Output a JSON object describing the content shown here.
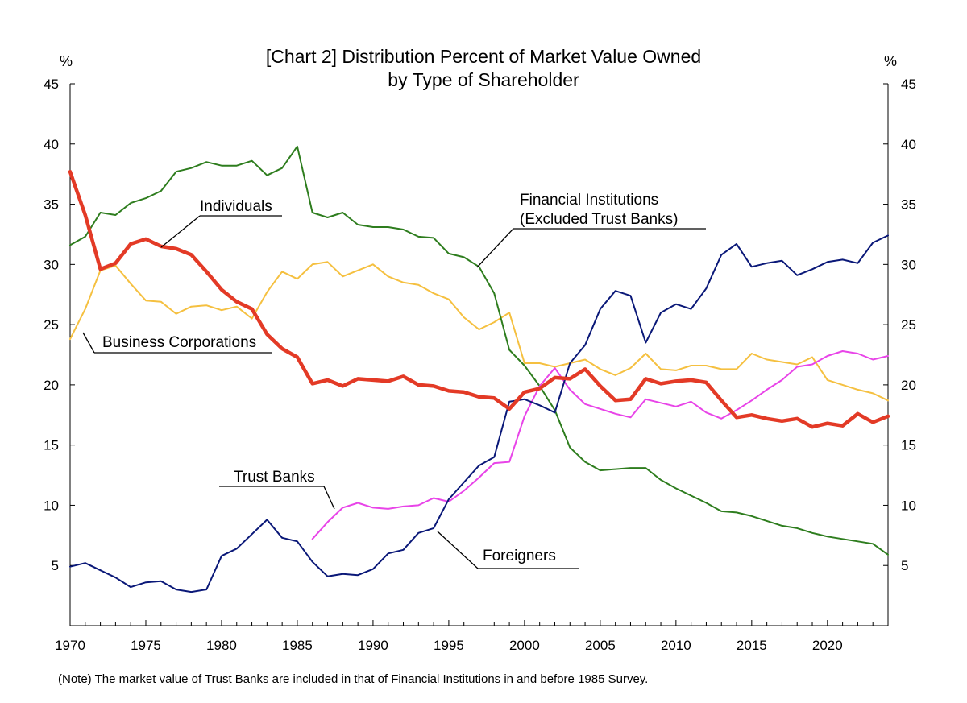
{
  "chart_data": {
    "type": "line",
    "title_line1": "[Chart  2] Distribution Percent of Market Value Owned",
    "title_line2": "by Type of Shareholder",
    "ylabel_left": "%",
    "ylabel_right": "%",
    "ylim": [
      0,
      45
    ],
    "yticks": [
      5,
      10,
      15,
      20,
      25,
      30,
      35,
      40,
      45
    ],
    "xlim": [
      1970,
      2024
    ],
    "xticks": [
      1970,
      1975,
      1980,
      1985,
      1990,
      1995,
      2000,
      2005,
      2010,
      2015,
      2020
    ],
    "note": "(Note)  The market value of Trust Banks are included in that of Financial Institutions in and before 1985 Survey.",
    "series": [
      {
        "key": "financial",
        "name": "Financial Institutions",
        "name_line2": "(Excluded Trust Banks)",
        "color": "#2e7d1e",
        "x": [
          1970,
          1971,
          1972,
          1973,
          1974,
          1975,
          1976,
          1977,
          1978,
          1979,
          1980,
          1981,
          1982,
          1983,
          1984,
          1985,
          1986,
          1987,
          1988,
          1989,
          1990,
          1991,
          1992,
          1993,
          1994,
          1995,
          1996,
          1997,
          1998,
          1999,
          2000,
          2001,
          2002,
          2003,
          2004,
          2005,
          2006,
          2007,
          2008,
          2009,
          2010,
          2011,
          2012,
          2013,
          2014,
          2015,
          2016,
          2017,
          2018,
          2019,
          2020,
          2021,
          2022,
          2023,
          2024
        ],
        "values": [
          31.6,
          32.3,
          34.3,
          34.1,
          35.1,
          35.5,
          36.1,
          37.7,
          38.0,
          38.5,
          38.2,
          38.2,
          38.6,
          37.4,
          38.0,
          39.8,
          34.3,
          33.9,
          34.3,
          33.3,
          33.1,
          33.1,
          32.9,
          32.3,
          32.2,
          30.9,
          30.6,
          29.8,
          27.6,
          22.9,
          21.6,
          19.9,
          17.9,
          14.8,
          13.6,
          12.9,
          13.0,
          13.1,
          13.1,
          12.1,
          11.4,
          10.8,
          10.2,
          9.5,
          9.4,
          9.1,
          8.7,
          8.3,
          8.1,
          7.7,
          7.4,
          7.2,
          7.0,
          6.8,
          5.9
        ]
      },
      {
        "key": "business",
        "name": "Business Corporations",
        "color": "#f5c040",
        "x": [
          1970,
          1971,
          1972,
          1973,
          1974,
          1975,
          1976,
          1977,
          1978,
          1979,
          1980,
          1981,
          1982,
          1983,
          1984,
          1985,
          1986,
          1987,
          1988,
          1989,
          1990,
          1991,
          1992,
          1993,
          1994,
          1995,
          1996,
          1997,
          1998,
          1999,
          2000,
          2001,
          2002,
          2003,
          2004,
          2005,
          2006,
          2007,
          2008,
          2009,
          2010,
          2011,
          2012,
          2013,
          2014,
          2015,
          2016,
          2017,
          2018,
          2019,
          2020,
          2021,
          2022,
          2023,
          2024
        ],
        "values": [
          23.8,
          26.3,
          29.5,
          29.9,
          28.4,
          27.0,
          26.9,
          25.9,
          26.5,
          26.6,
          26.2,
          26.5,
          25.5,
          27.7,
          29.4,
          28.8,
          30.0,
          30.2,
          29.0,
          29.5,
          30.0,
          29.0,
          28.5,
          28.3,
          27.6,
          27.1,
          25.6,
          24.6,
          25.2,
          26.0,
          21.8,
          21.8,
          21.5,
          21.8,
          22.1,
          21.3,
          20.8,
          21.4,
          22.6,
          21.3,
          21.2,
          21.6,
          21.6,
          21.3,
          21.3,
          22.6,
          22.1,
          21.9,
          21.7,
          22.3,
          20.4,
          20.0,
          19.6,
          19.3,
          18.7
        ]
      },
      {
        "key": "individuals",
        "name": "Individuals",
        "color": "#e33a26",
        "x": [
          1970,
          1971,
          1972,
          1973,
          1974,
          1975,
          1976,
          1977,
          1978,
          1979,
          1980,
          1981,
          1982,
          1983,
          1984,
          1985,
          1986,
          1987,
          1988,
          1989,
          1990,
          1991,
          1992,
          1993,
          1994,
          1995,
          1996,
          1997,
          1998,
          1999,
          2000,
          2001,
          2002,
          2003,
          2004,
          2005,
          2006,
          2007,
          2008,
          2009,
          2010,
          2011,
          2012,
          2013,
          2014,
          2015,
          2016,
          2017,
          2018,
          2019,
          2020,
          2021,
          2022,
          2023,
          2024
        ],
        "values": [
          37.7,
          34.1,
          29.6,
          30.1,
          31.7,
          32.1,
          31.5,
          31.3,
          30.8,
          29.4,
          27.9,
          26.9,
          26.3,
          24.2,
          23.0,
          22.3,
          20.1,
          20.4,
          19.9,
          20.5,
          20.4,
          20.3,
          20.7,
          20.0,
          19.9,
          19.5,
          19.4,
          19.0,
          18.9,
          18.0,
          19.4,
          19.7,
          20.6,
          20.5,
          21.3,
          19.9,
          18.7,
          18.8,
          20.5,
          20.1,
          20.3,
          20.4,
          20.2,
          18.7,
          17.3,
          17.5,
          17.2,
          17.0,
          17.2,
          16.5,
          16.8,
          16.6,
          17.6,
          16.9,
          17.4
        ]
      },
      {
        "key": "trust",
        "name": "Trust Banks",
        "color": "#e844e8",
        "x": [
          1986,
          1987,
          1988,
          1989,
          1990,
          1991,
          1992,
          1993,
          1994,
          1995,
          1996,
          1997,
          1998,
          1999,
          2000,
          2001,
          2002,
          2003,
          2004,
          2005,
          2006,
          2007,
          2008,
          2009,
          2010,
          2011,
          2012,
          2013,
          2014,
          2015,
          2016,
          2017,
          2018,
          2019,
          2020,
          2021,
          2022,
          2023,
          2024
        ],
        "values": [
          7.2,
          8.6,
          9.8,
          10.2,
          9.8,
          9.7,
          9.9,
          10.0,
          10.6,
          10.3,
          11.2,
          12.3,
          13.5,
          13.6,
          17.4,
          19.9,
          21.4,
          19.6,
          18.4,
          18.0,
          17.6,
          17.3,
          18.8,
          18.5,
          18.2,
          18.6,
          17.7,
          17.2,
          17.9,
          18.7,
          19.6,
          20.4,
          21.5,
          21.7,
          22.4,
          22.8,
          22.6,
          22.1,
          22.4
        ]
      },
      {
        "key": "foreigners",
        "name": "Foreigners",
        "color": "#0a1878",
        "x": [
          1970,
          1971,
          1972,
          1973,
          1974,
          1975,
          1976,
          1977,
          1978,
          1979,
          1980,
          1981,
          1982,
          1983,
          1984,
          1985,
          1986,
          1987,
          1988,
          1989,
          1990,
          1991,
          1992,
          1993,
          1994,
          1995,
          1996,
          1997,
          1998,
          1999,
          2000,
          2001,
          2002,
          2003,
          2004,
          2005,
          2006,
          2007,
          2008,
          2009,
          2010,
          2011,
          2012,
          2013,
          2014,
          2015,
          2016,
          2017,
          2018,
          2019,
          2020,
          2021,
          2022,
          2023,
          2024
        ],
        "values": [
          4.9,
          5.2,
          4.6,
          4.0,
          3.2,
          3.6,
          3.7,
          3.0,
          2.8,
          3.0,
          5.8,
          6.4,
          7.6,
          8.8,
          7.3,
          7.0,
          5.3,
          4.1,
          4.3,
          4.2,
          4.7,
          6.0,
          6.3,
          7.7,
          8.1,
          10.5,
          11.9,
          13.3,
          14.0,
          18.6,
          18.8,
          18.3,
          17.7,
          21.8,
          23.3,
          26.3,
          27.8,
          27.4,
          23.5,
          26.0,
          26.7,
          26.3,
          28.0,
          30.8,
          31.7,
          29.8,
          30.1,
          30.3,
          29.1,
          29.6,
          30.2,
          30.4,
          30.1,
          31.8,
          32.4
        ]
      }
    ]
  }
}
